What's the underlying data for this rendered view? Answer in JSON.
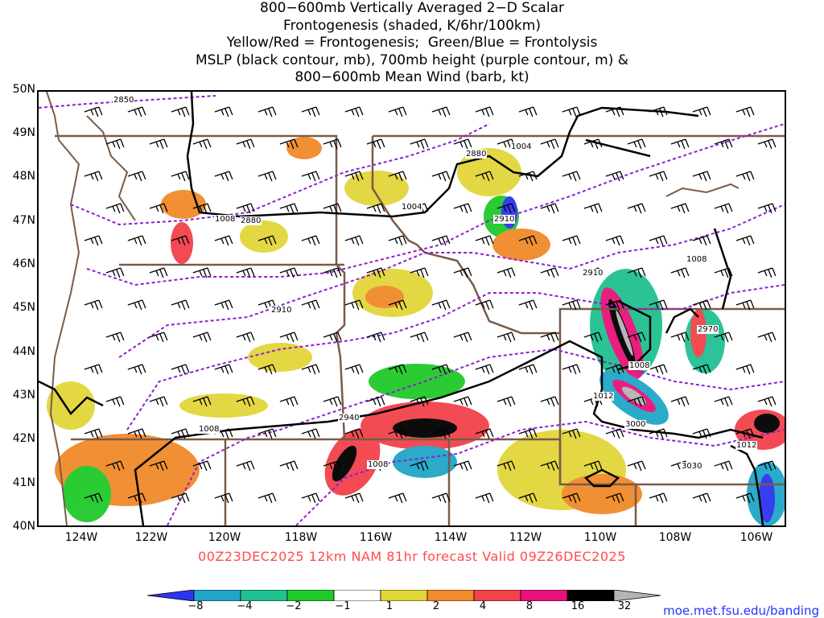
{
  "title": {
    "line1": "800−600mb Vertically Averaged 2−D Scalar",
    "line2": "Frontogenesis (shaded, K/6hr/100km)",
    "line3": "Yellow/Red = Frontogenesis;  Green/Blue = Frontolysis",
    "line4": "MSLP (black contour, mb), 700mb height (purple contour, m) &",
    "line5": "800−600mb Mean Wind (barb, kt)"
  },
  "axes": {
    "lat_labels": [
      "50N",
      "49N",
      "48N",
      "47N",
      "46N",
      "45N",
      "44N",
      "43N",
      "42N",
      "41N",
      "40N"
    ],
    "lon_labels": [
      "124W",
      "122W",
      "120W",
      "118W",
      "116W",
      "114W",
      "112W",
      "110W",
      "108W",
      "106W"
    ],
    "lat_range": [
      40,
      50
    ],
    "lon_range": [
      -125.1,
      -105.1
    ]
  },
  "contour_labels": {
    "mslp": [
      "1004",
      "1004",
      "1008",
      "1008",
      "1008",
      "1008",
      "1008",
      "1012",
      "1012"
    ],
    "height": [
      "2850",
      "2880",
      "2880",
      "2910",
      "2910",
      "2910",
      "2940",
      "2970",
      "3000",
      "3030"
    ]
  },
  "caption": "00Z23DEC2025 12km NAM 81hr forecast Valid 09Z26DEC2025",
  "colorbar": {
    "ticks": [
      "−8",
      "−4",
      "−2",
      "−1",
      "1",
      "2",
      "4",
      "8",
      "16",
      "32"
    ],
    "colors": [
      "#2b35f0",
      "#20a6c8",
      "#20c090",
      "#20c92a",
      "#ffffff",
      "#e2d53a",
      "#f08a2a",
      "#f2424a",
      "#e8127a",
      "#000000",
      "#b4b4b4"
    ]
  },
  "credit": "moe.met.fsu.edu/banding",
  "colors": {
    "mslp_contour": "#000000",
    "height_contour": "#9020d0",
    "state_borders": "#7a5a48",
    "caption": "#ff4a4a",
    "credit": "#2433ff"
  }
}
